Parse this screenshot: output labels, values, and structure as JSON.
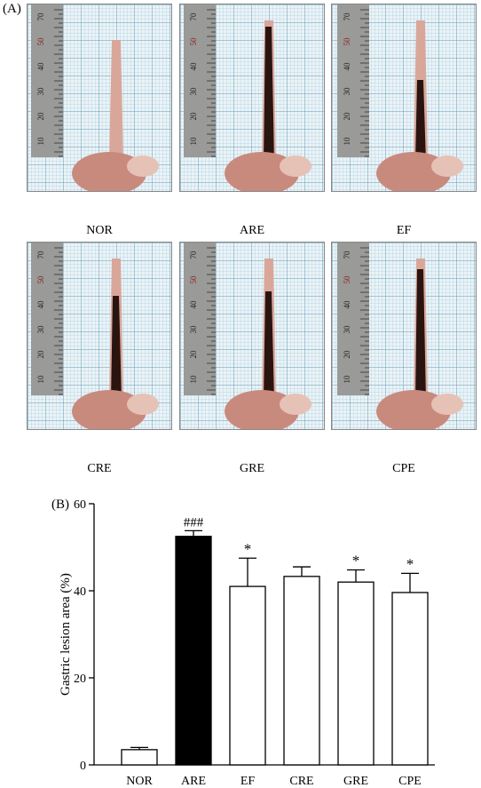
{
  "panel_a_label": "(A)",
  "panel_b_label": "(B)",
  "photos": [
    {
      "caption": "NOR"
    },
    {
      "caption": "ARE"
    },
    {
      "caption": "EF"
    },
    {
      "caption": "CRE"
    },
    {
      "caption": "GRE"
    },
    {
      "caption": "CPE"
    }
  ],
  "ruler_labels": [
    "70",
    "50",
    "40",
    "30",
    "20",
    "10"
  ],
  "colors": {
    "tissue": "#d9a79a",
    "stomach": "#c98a7e",
    "lesion": "#2a1410",
    "ruler": "#9a9a98",
    "bar_ARE": "#000000",
    "bar_default": "#ffffff"
  },
  "chart_data": {
    "type": "bar",
    "categories": [
      "NOR",
      "ARE",
      "EF",
      "CRE",
      "GRE",
      "CPE"
    ],
    "values": [
      3.5,
      52.5,
      41.0,
      43.3,
      42.0,
      39.6
    ],
    "errors": [
      0.5,
      1.3,
      6.5,
      2.2,
      2.8,
      4.4
    ],
    "annotations": [
      "",
      "###",
      "*",
      "",
      "*",
      "*"
    ],
    "fills": [
      "#ffffff",
      "#000000",
      "#ffffff",
      "#ffffff",
      "#ffffff",
      "#ffffff"
    ],
    "ylabel": "Gastric lesion area (%)",
    "xlabel": "",
    "title": "",
    "ylim": [
      0,
      60
    ],
    "yticks": [
      "0",
      "20",
      "40",
      "60"
    ],
    "grid": false,
    "legend": "none"
  }
}
